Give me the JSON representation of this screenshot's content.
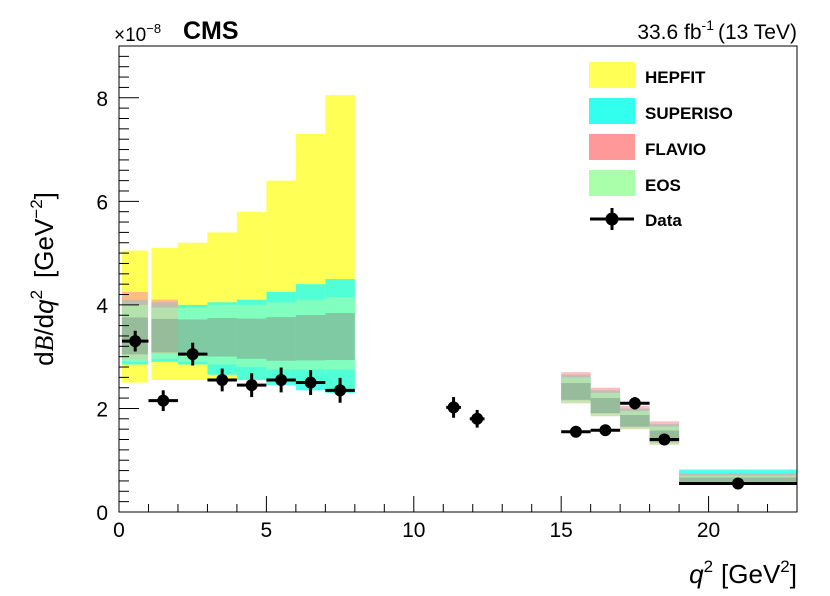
{
  "chart_data": {
    "type": "bar",
    "experiment": "CMS",
    "luminosity": "33.6 fb",
    "luminosity_exp": "-1",
    "energy": "(13 TeV)",
    "ylabel_d": "d",
    "ylabel_B": "B",
    "ylabel_slash": "/d",
    "ylabel_q": "q",
    "ylabel_q_exp": "2",
    "ylabel_unit": "[GeV",
    "ylabel_unit_exp": "−2",
    "ylabel_close": "]",
    "xlabel_q": "q",
    "xlabel_exp": "2",
    "xlabel_unit": "[GeV",
    "xlabel_unit_exp": "2",
    "xlabel_close": "]",
    "y_multiplier_base": "×10",
    "y_multiplier_exp": "−8",
    "xlim": [
      0,
      23
    ],
    "ylim": [
      0,
      9
    ],
    "x_ticks": [
      0,
      5,
      10,
      15,
      20
    ],
    "x_tick_labels": [
      "0",
      "5",
      "10",
      "15",
      "20"
    ],
    "y_ticks": [
      0,
      2,
      4,
      6,
      8
    ],
    "y_tick_labels": [
      "0",
      "2",
      "4",
      "6",
      "8"
    ],
    "colors": {
      "HEPFIT": "#ffff55",
      "SUPERISO": "#33ffee",
      "FLAVIO": "#ff9999",
      "EOS": "#aaffaa",
      "overlap": "#7f9f8c",
      "data": "#000000"
    },
    "legend_position": "top-right",
    "legend": [
      "HEPFIT",
      "SUPERISO",
      "FLAVIO",
      "EOS",
      "Data"
    ],
    "series": [
      {
        "name": "HEPFIT",
        "bins": [
          {
            "x0": 0.1,
            "x1": 0.98,
            "lo": 2.5,
            "hi": 5.05
          },
          {
            "x0": 1.1,
            "x1": 2.0,
            "lo": 2.55,
            "hi": 5.1
          },
          {
            "x0": 2.0,
            "x1": 3.0,
            "lo": 2.55,
            "hi": 5.2
          },
          {
            "x0": 3.0,
            "x1": 4.0,
            "lo": 2.55,
            "hi": 5.4
          },
          {
            "x0": 4.0,
            "x1": 5.0,
            "lo": 2.55,
            "hi": 5.8
          },
          {
            "x0": 5.0,
            "x1": 6.0,
            "lo": 2.5,
            "hi": 6.4
          },
          {
            "x0": 6.0,
            "x1": 7.0,
            "lo": 2.45,
            "hi": 7.3
          },
          {
            "x0": 7.0,
            "x1": 8.0,
            "lo": 2.35,
            "hi": 8.05
          }
        ]
      },
      {
        "name": "SUPERISO",
        "bins": [
          {
            "x0": 0.1,
            "x1": 0.98,
            "lo": 2.85,
            "hi": 4.1
          },
          {
            "x0": 1.1,
            "x1": 2.0,
            "lo": 2.9,
            "hi": 4.05
          },
          {
            "x0": 2.0,
            "x1": 3.0,
            "lo": 2.85,
            "hi": 4.0
          },
          {
            "x0": 3.0,
            "x1": 4.0,
            "lo": 2.65,
            "hi": 4.05
          },
          {
            "x0": 4.0,
            "x1": 5.0,
            "lo": 2.55,
            "hi": 4.1
          },
          {
            "x0": 5.0,
            "x1": 6.0,
            "lo": 2.45,
            "hi": 4.25
          },
          {
            "x0": 6.0,
            "x1": 7.0,
            "lo": 2.35,
            "hi": 4.4
          },
          {
            "x0": 7.0,
            "x1": 8.0,
            "lo": 2.3,
            "hi": 4.5
          },
          {
            "x0": 15.0,
            "x1": 16.0,
            "lo": 2.15,
            "hi": 2.65
          },
          {
            "x0": 16.0,
            "x1": 17.0,
            "lo": 1.9,
            "hi": 2.35
          },
          {
            "x0": 17.0,
            "x1": 18.0,
            "lo": 1.65,
            "hi": 2.0
          },
          {
            "x0": 18.0,
            "x1": 19.0,
            "lo": 1.35,
            "hi": 1.7
          },
          {
            "x0": 19.0,
            "x1": 23.0,
            "lo": 0.55,
            "hi": 0.82
          }
        ]
      },
      {
        "name": "FLAVIO",
        "bins": [
          {
            "x0": 0.1,
            "x1": 0.98,
            "lo": 2.95,
            "hi": 4.25
          },
          {
            "x0": 1.1,
            "x1": 2.0,
            "lo": 3.05,
            "hi": 4.1
          },
          {
            "x0": 15.0,
            "x1": 16.0,
            "lo": 2.1,
            "hi": 2.7
          },
          {
            "x0": 16.0,
            "x1": 17.0,
            "lo": 1.85,
            "hi": 2.4
          },
          {
            "x0": 17.0,
            "x1": 18.0,
            "lo": 1.6,
            "hi": 2.05
          },
          {
            "x0": 18.0,
            "x1": 19.0,
            "lo": 1.3,
            "hi": 1.75
          },
          {
            "x0": 19.0,
            "x1": 23.0,
            "lo": 0.55,
            "hi": 0.75
          }
        ]
      },
      {
        "name": "EOS",
        "bins": [
          {
            "x0": 0.1,
            "x1": 0.98,
            "lo": 2.9,
            "hi": 4.0
          },
          {
            "x0": 1.1,
            "x1": 2.0,
            "lo": 2.95,
            "hi": 3.95
          },
          {
            "x0": 2.0,
            "x1": 3.0,
            "lo": 2.9,
            "hi": 3.95
          },
          {
            "x0": 3.0,
            "x1": 4.0,
            "lo": 2.85,
            "hi": 4.0
          },
          {
            "x0": 4.0,
            "x1": 5.0,
            "lo": 2.8,
            "hi": 4.0
          },
          {
            "x0": 5.0,
            "x1": 6.0,
            "lo": 2.75,
            "hi": 4.05
          },
          {
            "x0": 6.0,
            "x1": 7.0,
            "lo": 2.75,
            "hi": 4.1
          },
          {
            "x0": 7.0,
            "x1": 8.0,
            "lo": 2.75,
            "hi": 4.15
          },
          {
            "x0": 15.0,
            "x1": 16.0,
            "lo": 2.1,
            "hi": 2.6
          },
          {
            "x0": 16.0,
            "x1": 17.0,
            "lo": 1.85,
            "hi": 2.3
          },
          {
            "x0": 17.0,
            "x1": 18.0,
            "lo": 1.6,
            "hi": 1.95
          },
          {
            "x0": 18.0,
            "x1": 19.0,
            "lo": 1.3,
            "hi": 1.65
          },
          {
            "x0": 19.0,
            "x1": 23.0,
            "lo": 0.55,
            "hi": 0.7
          }
        ]
      },
      {
        "name": "Data",
        "points": [
          {
            "x": 0.55,
            "xerr": 0.45,
            "y": 3.3,
            "yerr": 0.2
          },
          {
            "x": 1.5,
            "xerr": 0.5,
            "y": 2.15,
            "yerr": 0.2
          },
          {
            "x": 2.5,
            "xerr": 0.5,
            "y": 3.05,
            "yerr": 0.22
          },
          {
            "x": 3.5,
            "xerr": 0.5,
            "y": 2.55,
            "yerr": 0.22
          },
          {
            "x": 4.5,
            "xerr": 0.5,
            "y": 2.45,
            "yerr": 0.23
          },
          {
            "x": 5.5,
            "xerr": 0.5,
            "y": 2.55,
            "yerr": 0.24
          },
          {
            "x": 6.5,
            "xerr": 0.5,
            "y": 2.5,
            "yerr": 0.24
          },
          {
            "x": 7.5,
            "xerr": 0.5,
            "y": 2.35,
            "yerr": 0.24
          },
          {
            "x": 11.35,
            "xerr": 0.25,
            "y": 2.02,
            "yerr": 0.2
          },
          {
            "x": 12.15,
            "xerr": 0.25,
            "y": 1.8,
            "yerr": 0.17
          },
          {
            "x": 15.5,
            "xerr": 0.5,
            "y": 1.55,
            "yerr": 0.1
          },
          {
            "x": 16.5,
            "xerr": 0.5,
            "y": 1.58,
            "yerr": 0.1
          },
          {
            "x": 17.5,
            "xerr": 0.5,
            "y": 2.1,
            "yerr": 0.12
          },
          {
            "x": 18.5,
            "xerr": 0.5,
            "y": 1.4,
            "yerr": 0.08
          },
          {
            "x": 21.0,
            "xerr": 2.0,
            "y": 0.55,
            "yerr": 0.04
          }
        ]
      }
    ]
  }
}
